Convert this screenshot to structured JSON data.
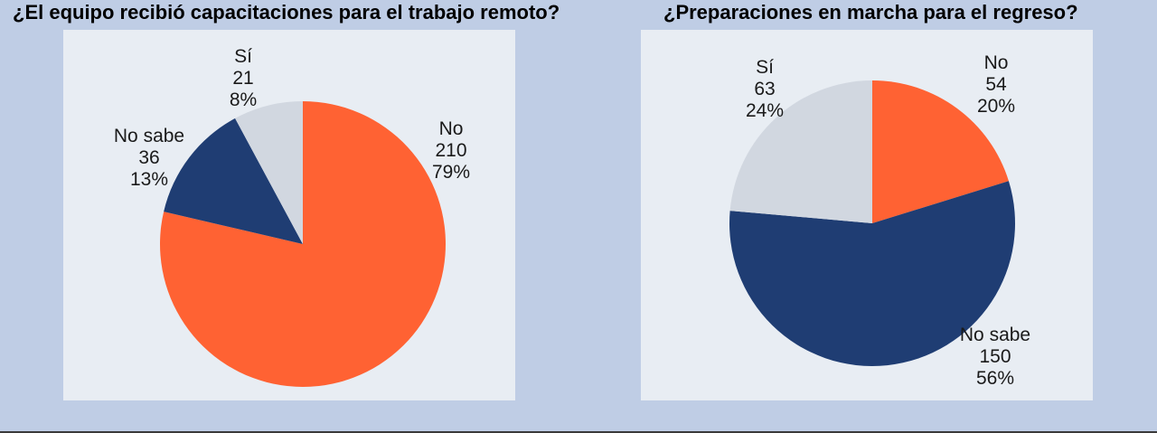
{
  "colors": {
    "No": "#ff6233",
    "No sabe": "#1f3d73",
    "Sí": "#d1d7e0"
  },
  "chart_data": [
    {
      "type": "pie",
      "title": "¿El equipo recibió capacitaciones para el trabajo remoto?",
      "slices": [
        {
          "label": "No",
          "value": 210,
          "percent": "79%"
        },
        {
          "label": "No sabe",
          "value": 36,
          "percent": "13%"
        },
        {
          "label": "Sí",
          "value": 21,
          "percent": "8%"
        }
      ]
    },
    {
      "type": "pie",
      "title": "¿Preparaciones en marcha para el regreso?",
      "slices": [
        {
          "label": "No",
          "value": 54,
          "percent": "20%"
        },
        {
          "label": "No sabe",
          "value": 150,
          "percent": "56%"
        },
        {
          "label": "Sí",
          "value": 63,
          "percent": "24%"
        }
      ]
    }
  ]
}
